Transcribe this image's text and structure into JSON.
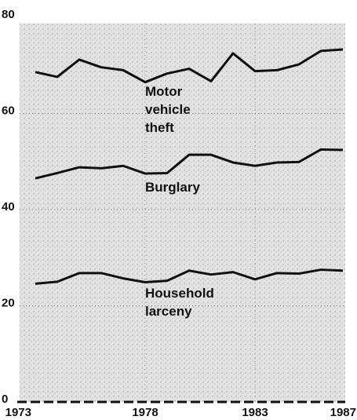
{
  "chart_data": {
    "type": "line",
    "x": [
      1973,
      1974,
      1975,
      1976,
      1977,
      1978,
      1979,
      1980,
      1981,
      1982,
      1983,
      1984,
      1985,
      1986,
      1987
    ],
    "series": [
      {
        "name": "Motor vehicle theft",
        "color": "#111111",
        "values": [
          68.6,
          67.6,
          71.2,
          69.6,
          69.0,
          66.5,
          68.3,
          69.3,
          66.7,
          72.5,
          68.8,
          69.0,
          70.2,
          73.0,
          73.3
        ]
      },
      {
        "name": "Burglary",
        "color": "#111111",
        "values": [
          46.5,
          47.6,
          48.8,
          48.6,
          49.1,
          47.5,
          47.6,
          51.4,
          51.4,
          49.8,
          49.1,
          49.8,
          49.9,
          52.5,
          52.4
        ]
      },
      {
        "name": "Household larceny",
        "color": "#111111",
        "values": [
          24.6,
          25.0,
          26.8,
          26.8,
          25.7,
          24.9,
          25.2,
          27.3,
          26.5,
          27.0,
          25.5,
          26.8,
          26.7,
          27.5,
          27.3
        ]
      }
    ],
    "xlim": [
      1973,
      1987
    ],
    "xticks": [
      1973,
      1978,
      1983,
      1987
    ],
    "ylim": [
      0,
      80
    ],
    "yticks": [
      0,
      20,
      40,
      60,
      80
    ],
    "grid": true
  }
}
